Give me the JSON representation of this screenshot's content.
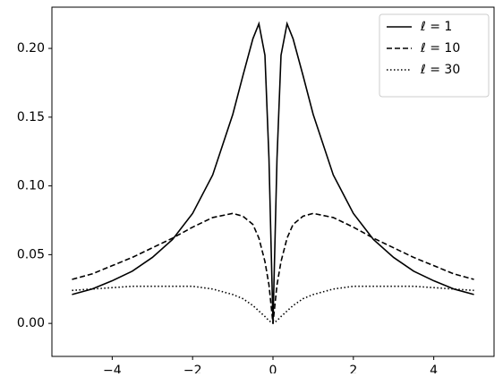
{
  "chart_data": {
    "type": "line",
    "x": [
      -5,
      -4.5,
      -4,
      -3.5,
      -3,
      -2.5,
      -2,
      -1.5,
      -1,
      -0.75,
      -0.5,
      -0.35,
      -0.2,
      -0.1,
      0,
      0.1,
      0.2,
      0.35,
      0.5,
      0.75,
      1,
      1.5,
      2,
      2.5,
      3,
      3.5,
      4,
      4.5,
      5
    ],
    "series": [
      {
        "name": "ℓ = 1",
        "color": "#000000",
        "style": "solid",
        "values": [
          0.021,
          0.025,
          0.031,
          0.038,
          0.048,
          0.061,
          0.08,
          0.108,
          0.152,
          0.18,
          0.207,
          0.218,
          0.195,
          0.12,
          0,
          0.12,
          0.195,
          0.218,
          0.207,
          0.18,
          0.152,
          0.108,
          0.08,
          0.061,
          0.048,
          0.038,
          0.031,
          0.025,
          0.021
        ]
      },
      {
        "name": "ℓ = 10",
        "color": "#000000",
        "style": "dashed",
        "values": [
          0.032,
          0.036,
          0.042,
          0.048,
          0.055,
          0.062,
          0.07,
          0.077,
          0.08,
          0.078,
          0.072,
          0.062,
          0.045,
          0.028,
          0,
          0.028,
          0.045,
          0.062,
          0.072,
          0.078,
          0.08,
          0.077,
          0.07,
          0.062,
          0.055,
          0.048,
          0.042,
          0.036,
          0.032
        ]
      },
      {
        "name": "ℓ = 30",
        "color": "#000000",
        "style": "dotted",
        "values": [
          0.024,
          0.025,
          0.026,
          0.027,
          0.027,
          0.027,
          0.027,
          0.025,
          0.021,
          0.018,
          0.013,
          0.009,
          0.005,
          0.002,
          0,
          0.002,
          0.005,
          0.009,
          0.013,
          0.018,
          0.021,
          0.025,
          0.027,
          0.027,
          0.027,
          0.027,
          0.026,
          0.025,
          0.024
        ]
      }
    ],
    "xlim": [
      -5.5,
      5.5
    ],
    "ylim": [
      -0.024,
      0.23
    ],
    "xticks": [
      {
        "value": -4,
        "label": "−4"
      },
      {
        "value": -2,
        "label": "−2"
      },
      0,
      2,
      4
    ],
    "yticks": [
      {
        "value": 0,
        "label": "0.00"
      },
      {
        "value": 0.05,
        "label": "0.05"
      },
      {
        "value": 0.1,
        "label": "0.10"
      },
      {
        "value": 0.15,
        "label": "0.15"
      },
      {
        "value": 0.2,
        "label": "0.20"
      }
    ],
    "grid": false,
    "legend": "upper right"
  }
}
